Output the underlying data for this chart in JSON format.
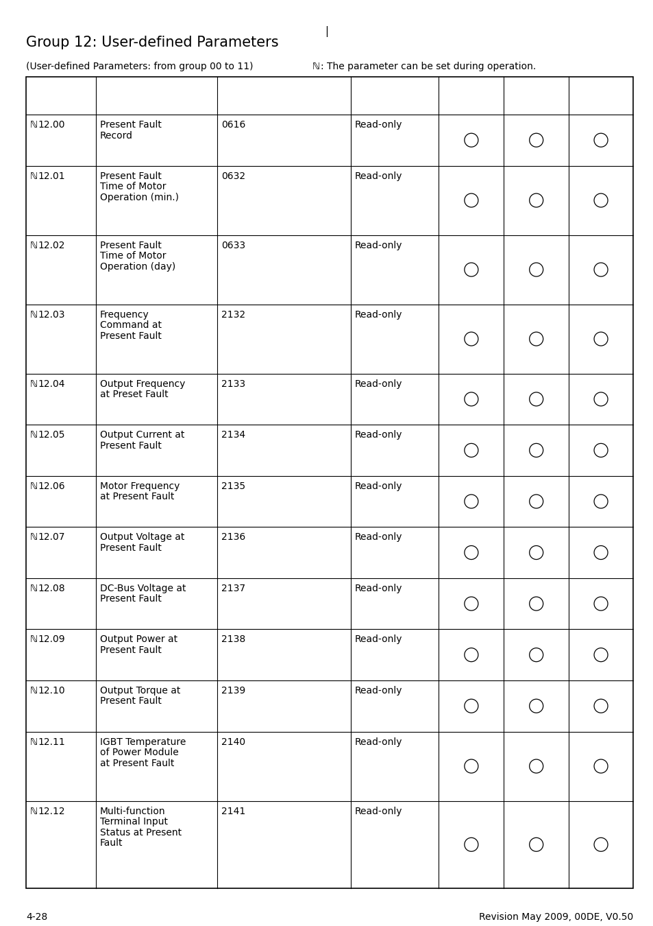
{
  "title": "Group 12: User-defined Parameters",
  "subtitle_left": "(User-defined Parameters: from group 00 to 11)",
  "subtitle_right": ": The parameter can be set during operation.",
  "page_left": "4-28",
  "page_right": "Revision May 2009, 00DE, V0.50",
  "rows": [
    {
      "param": "12.00",
      "description": [
        "Present Fault",
        "Record"
      ],
      "code": "0616",
      "access": "Read-only",
      "circles": [
        true,
        true,
        true
      ],
      "n_lines": 2
    },
    {
      "param": "12.01",
      "description": [
        "Present Fault",
        "Time of Motor",
        "Operation (min.)"
      ],
      "code": "0632",
      "access": "Read-only",
      "circles": [
        true,
        true,
        true
      ],
      "n_lines": 3
    },
    {
      "param": "12.02",
      "description": [
        "Present Fault",
        "Time of Motor",
        "Operation (day)"
      ],
      "code": "0633",
      "access": "Read-only",
      "circles": [
        true,
        true,
        true
      ],
      "n_lines": 3
    },
    {
      "param": "12.03",
      "description": [
        "Frequency",
        "Command at",
        "Present Fault"
      ],
      "code": "2132",
      "access": "Read-only",
      "circles": [
        true,
        true,
        true
      ],
      "n_lines": 3
    },
    {
      "param": "12.04",
      "description": [
        "Output Frequency",
        "at Preset Fault"
      ],
      "code": "2133",
      "access": "Read-only",
      "circles": [
        true,
        true,
        true
      ],
      "n_lines": 2
    },
    {
      "param": "12.05",
      "description": [
        "Output Current at",
        "Present Fault"
      ],
      "code": "2134",
      "access": "Read-only",
      "circles": [
        true,
        true,
        true
      ],
      "n_lines": 2
    },
    {
      "param": "12.06",
      "description": [
        "Motor Frequency",
        "at Present Fault"
      ],
      "code": "2135",
      "access": "Read-only",
      "circles": [
        true,
        true,
        true
      ],
      "n_lines": 2
    },
    {
      "param": "12.07",
      "description": [
        "Output Voltage at",
        "Present Fault"
      ],
      "code": "2136",
      "access": "Read-only",
      "circles": [
        true,
        true,
        true
      ],
      "n_lines": 2
    },
    {
      "param": "12.08",
      "description": [
        "DC-Bus Voltage at",
        "Present Fault"
      ],
      "code": "2137",
      "access": "Read-only",
      "circles": [
        true,
        true,
        true
      ],
      "n_lines": 2
    },
    {
      "param": "12.09",
      "description": [
        "Output Power at",
        "Present Fault"
      ],
      "code": "2138",
      "access": "Read-only",
      "circles": [
        true,
        true,
        true
      ],
      "n_lines": 2
    },
    {
      "param": "12.10",
      "description": [
        "Output Torque at",
        "Present Fault"
      ],
      "code": "2139",
      "access": "Read-only",
      "circles": [
        true,
        true,
        true
      ],
      "n_lines": 2
    },
    {
      "param": "12.11",
      "description": [
        "IGBT Temperature",
        "of Power Module",
        "at Present Fault"
      ],
      "code": "2140",
      "access": "Read-only",
      "circles": [
        true,
        true,
        true
      ],
      "n_lines": 3
    },
    {
      "param": "12.12",
      "description": [
        "Multi-function",
        "Terminal Input",
        "Status at Present",
        "Fault"
      ],
      "code": "2141",
      "access": "Read-only",
      "circles": [
        true,
        true,
        true
      ],
      "n_lines": 4
    }
  ],
  "bg_color": "#ffffff",
  "line_color": "#000000",
  "text_color": "#000000",
  "font_size": 10.0,
  "title_font_size": 15,
  "subtitle_font_size": 10
}
